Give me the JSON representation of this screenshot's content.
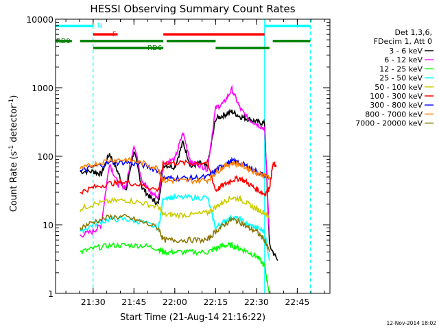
{
  "chart_data": {
    "type": "line",
    "title": "HESSI Observing Summary Count Rates",
    "xlabel": "Start Time (21-Aug-14 21:16:22)",
    "ylabel": "Count Rate (s",
    "ylabel_sup": "-1",
    "ylabel_mid": " detector",
    "ylabel_sup2": "-1",
    "ylabel_end": ")",
    "y_scale": "log",
    "ylim": [
      1,
      10000
    ],
    "xlim_minutes": [
      21.27,
      22.95
    ],
    "x_ticks": [
      {
        "h": 21.5,
        "label": "21:30"
      },
      {
        "h": 21.75,
        "label": "21:45"
      },
      {
        "h": 22.0,
        "label": "22:00"
      },
      {
        "h": 22.25,
        "label": "22:15"
      },
      {
        "h": 22.5,
        "label": "22:30"
      },
      {
        "h": 22.75,
        "label": "22:45"
      }
    ],
    "y_ticks": [
      {
        "v": 1,
        "label": "1"
      },
      {
        "v": 10,
        "label": "10"
      },
      {
        "v": 100,
        "label": "100"
      },
      {
        "v": 1000,
        "label": "1000"
      },
      {
        "v": 10000,
        "label": "10000"
      }
    ],
    "legend_header": [
      "Det 1,3,6,",
      "FDecim 1, Att 0"
    ],
    "legend_placement": "right",
    "series": [
      {
        "name": "3 - 6 keV",
        "color": "#000000",
        "x": [
          21.42,
          21.5,
          21.55,
          21.6,
          21.65,
          21.7,
          21.75,
          21.8,
          21.85,
          21.9,
          21.93,
          22.0,
          22.05,
          22.1,
          22.15,
          22.2,
          22.25,
          22.3,
          22.35,
          22.4,
          22.45,
          22.5,
          22.55,
          22.58,
          22.63
        ],
        "y": [
          60,
          60,
          55,
          110,
          60,
          30,
          120,
          35,
          25,
          20,
          75,
          70,
          160,
          70,
          80,
          70,
          350,
          400,
          450,
          380,
          350,
          320,
          300,
          5,
          3
        ]
      },
      {
        "name": "6 - 12 keV",
        "color": "#ff00ff",
        "x": [
          21.42,
          21.5,
          21.55,
          21.6,
          21.65,
          21.7,
          21.75,
          21.8,
          21.85,
          21.9,
          21.93,
          22.0,
          22.05,
          22.1,
          22.15,
          22.2,
          22.25,
          22.3,
          22.35,
          22.4,
          22.45,
          22.5,
          22.55,
          22.58
        ],
        "y": [
          7,
          8,
          10,
          80,
          40,
          35,
          150,
          45,
          30,
          25,
          80,
          90,
          220,
          80,
          75,
          65,
          500,
          600,
          950,
          500,
          350,
          300,
          250,
          7
        ]
      },
      {
        "name": "12 - 25 keV",
        "color": "#00ff00",
        "x": [
          21.42,
          21.5,
          21.6,
          21.7,
          21.8,
          21.9,
          21.93,
          22.0,
          22.1,
          22.2,
          22.25,
          22.3,
          22.35,
          22.4,
          22.45,
          22.5,
          22.55,
          22.58
        ],
        "y": [
          4,
          4.5,
          5,
          5,
          5,
          4.5,
          4,
          4,
          4,
          4,
          4.5,
          5,
          5,
          4.5,
          4,
          3.5,
          2.5,
          1
        ]
      },
      {
        "name": "25 - 50 keV",
        "color": "#00ffff",
        "x": [
          21.42,
          21.5,
          21.6,
          21.7,
          21.8,
          21.9,
          21.93,
          22.0,
          22.1,
          22.2,
          22.25,
          22.3,
          22.35,
          22.4,
          22.45,
          22.5,
          22.55,
          22.58
        ],
        "y": [
          8,
          10,
          12,
          12,
          11,
          9,
          25,
          25,
          25,
          25,
          9,
          11,
          13,
          12,
          10,
          9,
          8,
          3
        ]
      },
      {
        "name": "50 - 100 keV",
        "color": "#cccc00",
        "x": [
          21.42,
          21.5,
          21.6,
          21.7,
          21.8,
          21.9,
          21.93,
          22.0,
          22.1,
          22.2,
          22.25,
          22.3,
          22.35,
          22.4,
          22.45,
          22.5,
          22.55,
          22.58
        ],
        "y": [
          17,
          20,
          22,
          23,
          21,
          18,
          14,
          14,
          14,
          15,
          18,
          22,
          25,
          24,
          20,
          17,
          15,
          13
        ]
      },
      {
        "name": "100 - 300 keV",
        "color": "#ff0000",
        "x": [
          21.42,
          21.5,
          21.6,
          21.7,
          21.8,
          21.9,
          21.93,
          22.0,
          22.1,
          22.2,
          22.25,
          22.3,
          22.35,
          22.4,
          22.45,
          22.5,
          22.55,
          22.58,
          22.6,
          22.62
        ],
        "y": [
          30,
          35,
          40,
          42,
          38,
          32,
          80,
          80,
          80,
          80,
          32,
          38,
          45,
          48,
          40,
          33,
          28,
          35,
          75,
          75
        ]
      },
      {
        "name": "300 - 800 keV",
        "color": "#0000ff",
        "x": [
          21.42,
          21.5,
          21.6,
          21.7,
          21.8,
          21.9,
          21.93,
          22.0,
          22.1,
          22.2,
          22.25,
          22.3,
          22.35,
          22.4,
          22.45,
          22.5,
          22.55,
          22.58
        ],
        "y": [
          60,
          70,
          80,
          82,
          75,
          62,
          48,
          48,
          48,
          50,
          62,
          75,
          85,
          80,
          70,
          60,
          52,
          50
        ]
      },
      {
        "name": "800 - 7000 keV",
        "color": "#ff8000",
        "x": [
          21.42,
          21.5,
          21.6,
          21.7,
          21.8,
          21.9,
          21.93,
          22.0,
          22.1,
          22.2,
          22.25,
          22.3,
          22.35,
          22.4,
          22.45,
          22.5,
          22.55,
          22.58
        ],
        "y": [
          65,
          75,
          88,
          90,
          80,
          66,
          44,
          44,
          44,
          45,
          58,
          70,
          80,
          76,
          66,
          58,
          52,
          50
        ]
      },
      {
        "name": "7000 - 20000 keV",
        "color": "#8b7500",
        "x": [
          21.42,
          21.5,
          21.6,
          21.7,
          21.8,
          21.9,
          21.93,
          22.0,
          22.1,
          22.2,
          22.25,
          22.3,
          22.35,
          22.4,
          22.45,
          22.5,
          22.55,
          22.58
        ],
        "y": [
          9,
          11,
          13,
          13,
          11,
          9,
          6,
          6,
          6,
          6,
          8,
          10,
          12,
          11,
          9,
          8,
          6,
          4
        ]
      }
    ],
    "flags": [
      {
        "label": "N",
        "color": "#00ffff",
        "level": 8000,
        "segments": [
          [
            21.27,
            21.5
          ],
          [
            22.55,
            22.83
          ]
        ]
      },
      {
        "label": "F",
        "color": "#ff0000",
        "level": 6000,
        "segments": [
          [
            21.5,
            21.65
          ],
          [
            21.93,
            22.55
          ]
        ]
      },
      {
        "label": "RD0",
        "color": "#008000",
        "level": 4800,
        "segments": [
          [
            21.27,
            21.37
          ],
          [
            21.42,
            21.93
          ],
          [
            21.95,
            22.25
          ],
          [
            22.6,
            22.83
          ]
        ]
      },
      {
        "label": "RD6",
        "color": "#008000",
        "level": 3800,
        "segments": [
          [
            21.5,
            21.93
          ],
          [
            22.25,
            22.58
          ]
        ]
      }
    ],
    "vlines": [
      {
        "h": 21.27,
        "color": "#00ffff",
        "dash": false
      },
      {
        "h": 21.5,
        "color": "#00ffff",
        "dash": true
      },
      {
        "h": 22.55,
        "color": "#00ffff",
        "dash": false
      },
      {
        "h": 22.83,
        "color": "#00ffff",
        "dash": true
      }
    ],
    "timestamp": "12-Nov-2014 18:02"
  }
}
